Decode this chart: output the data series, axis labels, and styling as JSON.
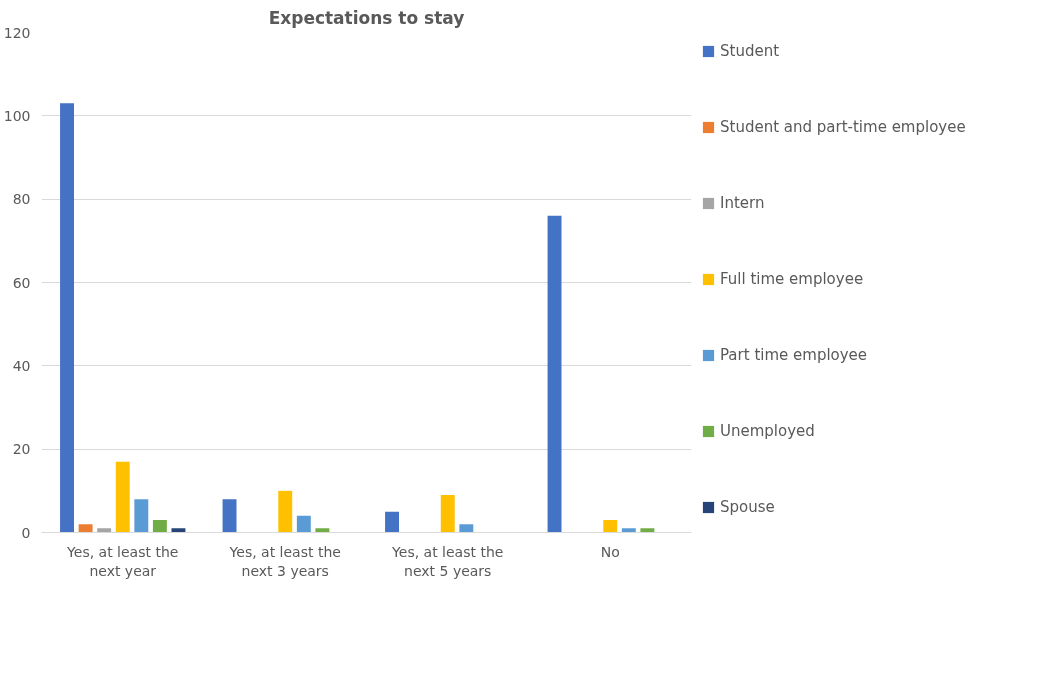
{
  "chart_data": {
    "type": "bar",
    "title": "Expectations to stay",
    "categories": [
      "Yes, at least the next year",
      "Yes, at least the next 3 years",
      "Yes, at least the next 5 years",
      "No"
    ],
    "series": [
      {
        "name": "Student",
        "color": "#4472c4",
        "values": [
          103,
          8,
          5,
          76
        ]
      },
      {
        "name": "Student and part-time employee",
        "color": "#ed7d31",
        "values": [
          2,
          0,
          0,
          0
        ]
      },
      {
        "name": "Intern",
        "color": "#a5a5a5",
        "values": [
          1,
          0,
          0,
          0
        ]
      },
      {
        "name": "Full time employee",
        "color": "#ffc000",
        "values": [
          17,
          10,
          9,
          3
        ]
      },
      {
        "name": "Part time employee",
        "color": "#5b9bd5",
        "values": [
          8,
          4,
          2,
          1
        ]
      },
      {
        "name": "Unemployed",
        "color": "#70ad47",
        "values": [
          3,
          1,
          0,
          1
        ]
      },
      {
        "name": "Spouse",
        "color": "#264478",
        "values": [
          1,
          0,
          0,
          0
        ]
      }
    ],
    "ylim": [
      0,
      120
    ],
    "yticks": [
      0,
      20,
      40,
      60,
      80,
      100,
      120
    ],
    "grid": "y",
    "legend": "right"
  }
}
